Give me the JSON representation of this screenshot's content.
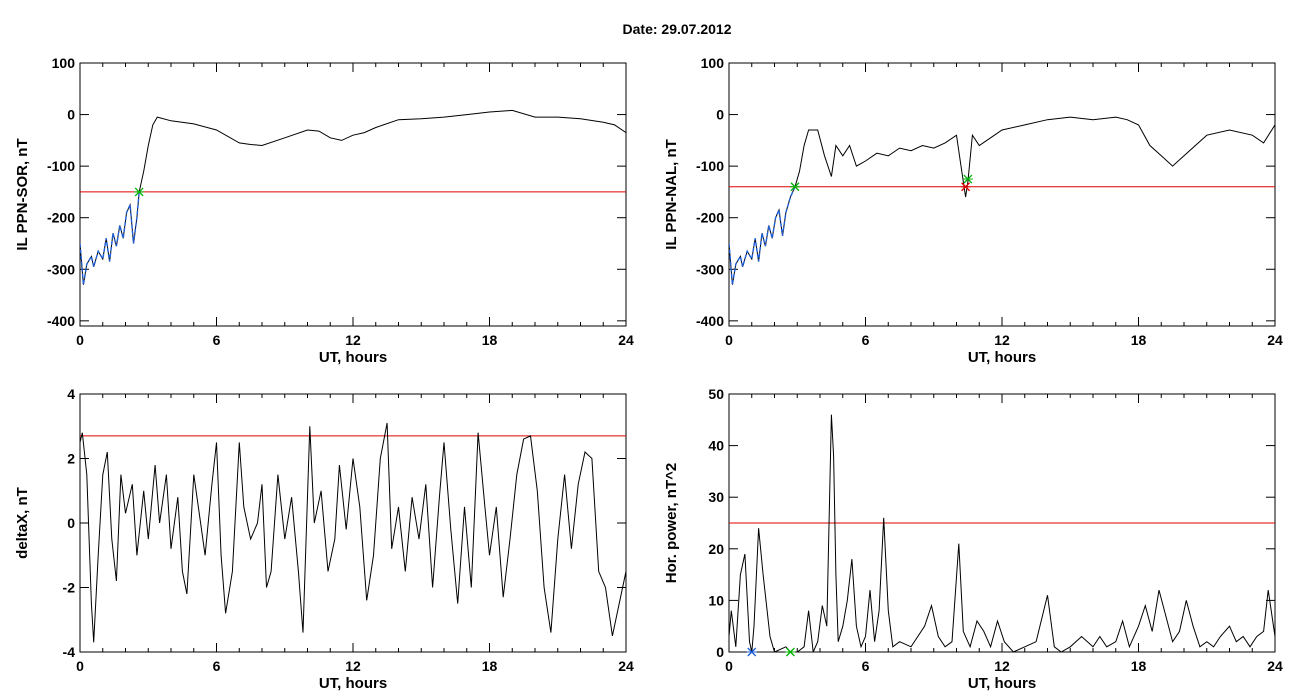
{
  "title": "Date:  29.07.2012",
  "chart_data": [
    {
      "id": "p1",
      "type": "line",
      "xlabel": "UT, hours",
      "ylabel": "IL PPN-SOR, nT",
      "xlim": [
        0,
        24
      ],
      "ylim": [
        -410,
        100
      ],
      "xticks": [
        0,
        6,
        12,
        18,
        24
      ],
      "yticks": [
        100,
        0,
        -100,
        -200,
        -300,
        -400
      ],
      "threshold": {
        "y": -150,
        "color": "#e00000"
      },
      "highlight": {
        "from": 0,
        "to": 2.6,
        "color": "#1f5fd6"
      },
      "markers": [
        {
          "x": 2.6,
          "y": -150,
          "color": "#00b000"
        }
      ],
      "points": [
        [
          0.0,
          -250
        ],
        [
          0.15,
          -330
        ],
        [
          0.3,
          -290
        ],
        [
          0.5,
          -275
        ],
        [
          0.6,
          -295
        ],
        [
          0.8,
          -265
        ],
        [
          1.0,
          -280
        ],
        [
          1.15,
          -240
        ],
        [
          1.3,
          -285
        ],
        [
          1.45,
          -230
        ],
        [
          1.6,
          -255
        ],
        [
          1.75,
          -215
        ],
        [
          1.9,
          -240
        ],
        [
          2.05,
          -190
        ],
        [
          2.2,
          -175
        ],
        [
          2.35,
          -250
        ],
        [
          2.5,
          -200
        ],
        [
          2.6,
          -150
        ],
        [
          2.8,
          -110
        ],
        [
          3.0,
          -60
        ],
        [
          3.2,
          -20
        ],
        [
          3.4,
          -5
        ],
        [
          4.0,
          -12
        ],
        [
          5.0,
          -18
        ],
        [
          6.0,
          -30
        ],
        [
          7.0,
          -55
        ],
        [
          7.5,
          -58
        ],
        [
          8.0,
          -60
        ],
        [
          9.0,
          -45
        ],
        [
          10.0,
          -30
        ],
        [
          10.5,
          -32
        ],
        [
          11.0,
          -45
        ],
        [
          11.5,
          -50
        ],
        [
          12.0,
          -40
        ],
        [
          12.5,
          -35
        ],
        [
          13.0,
          -25
        ],
        [
          14.0,
          -10
        ],
        [
          15.0,
          -8
        ],
        [
          16.0,
          -5
        ],
        [
          17.0,
          0
        ],
        [
          18.0,
          5
        ],
        [
          19.0,
          8
        ],
        [
          20.0,
          -5
        ],
        [
          21.0,
          -5
        ],
        [
          22.0,
          -8
        ],
        [
          23.0,
          -15
        ],
        [
          23.5,
          -20
        ],
        [
          24.0,
          -35
        ]
      ]
    },
    {
      "id": "p2",
      "type": "line",
      "xlabel": "UT, hours",
      "ylabel": "IL PPN-NAL, nT",
      "xlim": [
        0,
        24
      ],
      "ylim": [
        -410,
        100
      ],
      "xticks": [
        0,
        6,
        12,
        18,
        24
      ],
      "yticks": [
        100,
        0,
        -100,
        -200,
        -300,
        -400
      ],
      "threshold": {
        "y": -140,
        "color": "#e00000"
      },
      "highlight": {
        "from": 0,
        "to": 2.9,
        "color": "#1f5fd6"
      },
      "markers": [
        {
          "x": 2.9,
          "y": -140,
          "color": "#00b000"
        },
        {
          "x": 10.4,
          "y": -140,
          "color": "#e00000"
        },
        {
          "x": 10.5,
          "y": -125,
          "color": "#00b000"
        }
      ],
      "points": [
        [
          0.0,
          -250
        ],
        [
          0.15,
          -330
        ],
        [
          0.3,
          -290
        ],
        [
          0.5,
          -275
        ],
        [
          0.6,
          -295
        ],
        [
          0.8,
          -265
        ],
        [
          1.0,
          -280
        ],
        [
          1.15,
          -240
        ],
        [
          1.3,
          -285
        ],
        [
          1.45,
          -230
        ],
        [
          1.6,
          -255
        ],
        [
          1.75,
          -215
        ],
        [
          1.9,
          -240
        ],
        [
          2.05,
          -200
        ],
        [
          2.2,
          -185
        ],
        [
          2.35,
          -235
        ],
        [
          2.5,
          -190
        ],
        [
          2.7,
          -160
        ],
        [
          2.9,
          -140
        ],
        [
          3.1,
          -110
        ],
        [
          3.3,
          -60
        ],
        [
          3.5,
          -30
        ],
        [
          3.9,
          -30
        ],
        [
          4.2,
          -80
        ],
        [
          4.5,
          -120
        ],
        [
          4.7,
          -60
        ],
        [
          5.0,
          -80
        ],
        [
          5.3,
          -60
        ],
        [
          5.6,
          -100
        ],
        [
          6.0,
          -90
        ],
        [
          6.5,
          -75
        ],
        [
          7.0,
          -80
        ],
        [
          7.5,
          -65
        ],
        [
          8.0,
          -70
        ],
        [
          8.5,
          -60
        ],
        [
          9.0,
          -65
        ],
        [
          9.5,
          -55
        ],
        [
          10.0,
          -40
        ],
        [
          10.2,
          -100
        ],
        [
          10.4,
          -160
        ],
        [
          10.5,
          -130
        ],
        [
          10.7,
          -40
        ],
        [
          11.0,
          -60
        ],
        [
          11.5,
          -45
        ],
        [
          12.0,
          -30
        ],
        [
          13.0,
          -20
        ],
        [
          14.0,
          -10
        ],
        [
          15.0,
          -5
        ],
        [
          16.0,
          -10
        ],
        [
          17.0,
          -5
        ],
        [
          17.5,
          -10
        ],
        [
          18.0,
          -20
        ],
        [
          18.5,
          -60
        ],
        [
          19.0,
          -80
        ],
        [
          19.5,
          -100
        ],
        [
          20.0,
          -80
        ],
        [
          21.0,
          -40
        ],
        [
          22.0,
          -30
        ],
        [
          23.0,
          -40
        ],
        [
          23.5,
          -55
        ],
        [
          24.0,
          -20
        ]
      ]
    },
    {
      "id": "p3",
      "type": "line",
      "xlabel": "UT, hours",
      "ylabel": "deltaX, nT",
      "xlim": [
        0,
        24
      ],
      "ylim": [
        -4,
        4
      ],
      "xticks": [
        0,
        6,
        12,
        18,
        24
      ],
      "yticks": [
        4,
        2,
        0,
        -2,
        -4
      ],
      "threshold": {
        "y": 2.7,
        "color": "#e00000"
      },
      "points": [
        [
          0.0,
          2.5
        ],
        [
          0.1,
          2.8
        ],
        [
          0.3,
          1.5
        ],
        [
          0.5,
          -2.5
        ],
        [
          0.6,
          -3.7
        ],
        [
          0.8,
          -1.0
        ],
        [
          1.0,
          1.5
        ],
        [
          1.2,
          2.2
        ],
        [
          1.4,
          -0.5
        ],
        [
          1.6,
          -1.8
        ],
        [
          1.8,
          1.5
        ],
        [
          2.0,
          0.3
        ],
        [
          2.3,
          1.2
        ],
        [
          2.5,
          -1.0
        ],
        [
          2.8,
          1.0
        ],
        [
          3.0,
          -0.5
        ],
        [
          3.3,
          1.8
        ],
        [
          3.5,
          0.0
        ],
        [
          3.8,
          1.5
        ],
        [
          4.0,
          -0.8
        ],
        [
          4.3,
          0.8
        ],
        [
          4.5,
          -1.5
        ],
        [
          4.7,
          -2.2
        ],
        [
          5.0,
          1.5
        ],
        [
          5.3,
          0.0
        ],
        [
          5.5,
          -1.0
        ],
        [
          5.8,
          1.2
        ],
        [
          6.0,
          2.5
        ],
        [
          6.2,
          -1.0
        ],
        [
          6.4,
          -2.8
        ],
        [
          6.7,
          -1.5
        ],
        [
          7.0,
          2.5
        ],
        [
          7.2,
          0.5
        ],
        [
          7.5,
          -0.5
        ],
        [
          7.8,
          0.0
        ],
        [
          8.0,
          1.2
        ],
        [
          8.2,
          -2.0
        ],
        [
          8.4,
          -1.5
        ],
        [
          8.7,
          1.5
        ],
        [
          9.0,
          -0.5
        ],
        [
          9.3,
          0.8
        ],
        [
          9.6,
          -1.5
        ],
        [
          9.8,
          -3.4
        ],
        [
          10.1,
          3.0
        ],
        [
          10.3,
          0.0
        ],
        [
          10.6,
          1.0
        ],
        [
          10.9,
          -1.5
        ],
        [
          11.2,
          -0.5
        ],
        [
          11.4,
          1.8
        ],
        [
          11.7,
          -0.2
        ],
        [
          12.0,
          2.0
        ],
        [
          12.3,
          0.5
        ],
        [
          12.6,
          -2.4
        ],
        [
          12.9,
          -1.0
        ],
        [
          13.2,
          2.0
        ],
        [
          13.5,
          3.1
        ],
        [
          13.7,
          -0.8
        ],
        [
          14.0,
          0.5
        ],
        [
          14.3,
          -1.5
        ],
        [
          14.6,
          0.8
        ],
        [
          14.9,
          -0.5
        ],
        [
          15.2,
          1.2
        ],
        [
          15.5,
          -2.0
        ],
        [
          15.8,
          0.8
        ],
        [
          16.0,
          2.5
        ],
        [
          16.3,
          -0.2
        ],
        [
          16.6,
          -2.5
        ],
        [
          16.9,
          0.5
        ],
        [
          17.2,
          -2.0
        ],
        [
          17.5,
          2.8
        ],
        [
          17.8,
          0.5
        ],
        [
          18.0,
          -1.0
        ],
        [
          18.3,
          0.5
        ],
        [
          18.6,
          -2.3
        ],
        [
          18.9,
          -0.5
        ],
        [
          19.2,
          1.5
        ],
        [
          19.5,
          2.6
        ],
        [
          19.8,
          2.7
        ],
        [
          20.1,
          1.0
        ],
        [
          20.4,
          -2.0
        ],
        [
          20.7,
          -3.4
        ],
        [
          21.0,
          -0.5
        ],
        [
          21.3,
          1.5
        ],
        [
          21.6,
          -0.8
        ],
        [
          21.9,
          1.2
        ],
        [
          22.2,
          2.2
        ],
        [
          22.5,
          2.0
        ],
        [
          22.8,
          -1.5
        ],
        [
          23.1,
          -2.0
        ],
        [
          23.4,
          -3.5
        ],
        [
          23.7,
          -2.5
        ],
        [
          24.0,
          -1.5
        ]
      ]
    },
    {
      "id": "p4",
      "type": "line",
      "xlabel": "UT, hours",
      "ylabel": "Hor. power, nT^2",
      "xlim": [
        0,
        24
      ],
      "ylim": [
        0,
        50
      ],
      "xticks": [
        0,
        6,
        12,
        18,
        24
      ],
      "yticks": [
        50,
        40,
        30,
        20,
        10,
        0
      ],
      "threshold": {
        "y": 25,
        "color": "#e00000"
      },
      "markers": [
        {
          "x": 1.0,
          "y": 0,
          "color": "#1f5fd6"
        },
        {
          "x": 2.7,
          "y": 0,
          "color": "#00b000"
        }
      ],
      "points": [
        [
          0.0,
          3
        ],
        [
          0.1,
          8
        ],
        [
          0.3,
          1
        ],
        [
          0.5,
          15
        ],
        [
          0.7,
          19
        ],
        [
          0.9,
          2
        ],
        [
          1.0,
          0
        ],
        [
          1.1,
          5
        ],
        [
          1.3,
          24
        ],
        [
          1.5,
          15
        ],
        [
          1.8,
          3
        ],
        [
          2.0,
          0
        ],
        [
          2.5,
          1
        ],
        [
          2.7,
          0
        ],
        [
          3.0,
          0
        ],
        [
          3.3,
          1
        ],
        [
          3.5,
          8
        ],
        [
          3.7,
          0
        ],
        [
          3.9,
          2
        ],
        [
          4.1,
          9
        ],
        [
          4.3,
          5
        ],
        [
          4.5,
          46
        ],
        [
          4.6,
          38
        ],
        [
          4.7,
          15
        ],
        [
          4.8,
          2
        ],
        [
          5.0,
          5
        ],
        [
          5.2,
          10
        ],
        [
          5.4,
          18
        ],
        [
          5.6,
          5
        ],
        [
          5.8,
          1
        ],
        [
          6.0,
          3
        ],
        [
          6.2,
          12
        ],
        [
          6.4,
          2
        ],
        [
          6.6,
          8
        ],
        [
          6.8,
          26
        ],
        [
          7.0,
          8
        ],
        [
          7.2,
          1
        ],
        [
          7.5,
          2
        ],
        [
          8.0,
          1
        ],
        [
          8.3,
          3
        ],
        [
          8.6,
          5
        ],
        [
          8.9,
          9
        ],
        [
          9.2,
          3
        ],
        [
          9.5,
          1
        ],
        [
          9.8,
          2
        ],
        [
          10.1,
          21
        ],
        [
          10.3,
          4
        ],
        [
          10.6,
          1
        ],
        [
          10.9,
          6
        ],
        [
          11.2,
          4
        ],
        [
          11.5,
          1
        ],
        [
          11.8,
          6
        ],
        [
          12.1,
          2
        ],
        [
          12.5,
          0
        ],
        [
          13.0,
          1
        ],
        [
          13.5,
          2
        ],
        [
          14.0,
          11
        ],
        [
          14.3,
          1
        ],
        [
          14.6,
          0
        ],
        [
          15.0,
          1
        ],
        [
          15.5,
          3
        ],
        [
          16.0,
          1
        ],
        [
          16.3,
          3
        ],
        [
          16.6,
          1
        ],
        [
          17.0,
          2
        ],
        [
          17.3,
          6
        ],
        [
          17.6,
          1
        ],
        [
          18.0,
          5
        ],
        [
          18.3,
          9
        ],
        [
          18.6,
          4
        ],
        [
          18.9,
          12
        ],
        [
          19.2,
          7
        ],
        [
          19.5,
          2
        ],
        [
          19.8,
          4
        ],
        [
          20.1,
          10
        ],
        [
          20.4,
          5
        ],
        [
          20.7,
          1
        ],
        [
          21.0,
          2
        ],
        [
          21.3,
          1
        ],
        [
          21.6,
          3
        ],
        [
          22.0,
          5
        ],
        [
          22.3,
          2
        ],
        [
          22.6,
          3
        ],
        [
          22.9,
          1
        ],
        [
          23.2,
          3
        ],
        [
          23.5,
          4
        ],
        [
          23.7,
          12
        ],
        [
          24.0,
          3
        ]
      ]
    }
  ]
}
